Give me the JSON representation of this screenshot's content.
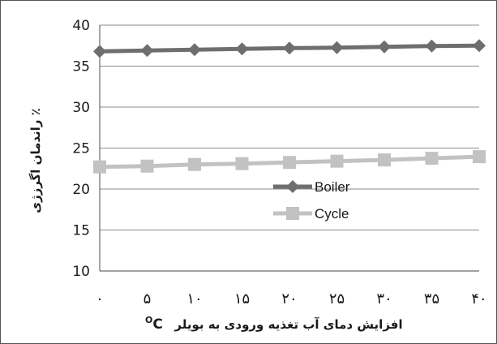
{
  "chart_data": {
    "type": "line",
    "x": [
      "٠",
      "۵",
      "١٠",
      "١۵",
      "٢٠",
      "٢۵",
      "٣٠",
      "٣۵",
      "۴٠"
    ],
    "series": [
      {
        "name": "Boiler",
        "values": [
          36.8,
          36.9,
          37.0,
          37.1,
          37.2,
          37.25,
          37.35,
          37.45,
          37.5
        ],
        "color": "#6e6e6e",
        "marker": "diamond"
      },
      {
        "name": "Cycle",
        "values": [
          22.7,
          22.8,
          23.0,
          23.1,
          23.25,
          23.4,
          23.55,
          23.75,
          23.95
        ],
        "color": "#c2c2c2",
        "marker": "square"
      }
    ],
    "title": "",
    "xlabel": "افزایش دمای آب تغذیه ورودی به بویلر",
    "xlabel_unit": "C",
    "xlabel_unit_sup": "O",
    "ylabel": "٪ راندمان اگرزژی",
    "yticks": [
      "10",
      "15",
      "20",
      "25",
      "30",
      "35",
      "40"
    ],
    "ylim": [
      10,
      40
    ],
    "grid": "horizontal",
    "legend": "center-right"
  }
}
